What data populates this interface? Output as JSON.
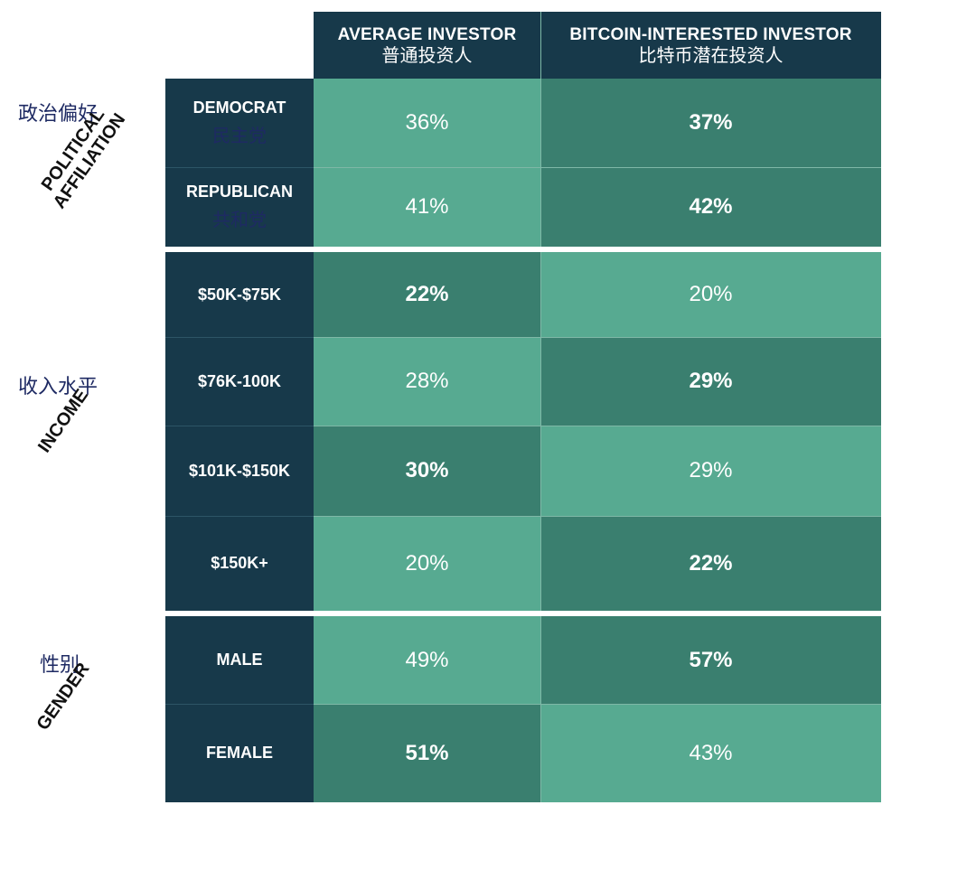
{
  "columns": [
    {
      "en": "AVERAGE INVESTOR",
      "zh": "普通投资人"
    },
    {
      "en": "BITCOIN-INTERESTED INVESTOR",
      "zh": "比特币潜在投资人"
    }
  ],
  "groups": [
    {
      "en_lines": [
        "POLITICAL",
        "AFFILIATION"
      ],
      "zh": "政治偏好"
    },
    {
      "en_lines": [
        "INCOME"
      ],
      "zh": "收入水平"
    },
    {
      "en_lines": [
        "GENDER"
      ],
      "zh": "性别"
    }
  ],
  "rows": [
    {
      "en": "DEMOCRAT",
      "zh": "民主党",
      "values": [
        "36%",
        "37%"
      ]
    },
    {
      "en": "REPUBLICAN",
      "zh": "共和党",
      "values": [
        "41%",
        "42%"
      ]
    },
    {
      "en": "$50K-$75K",
      "zh": "",
      "values": [
        "22%",
        "20%"
      ]
    },
    {
      "en": "$76K-100K",
      "zh": "",
      "values": [
        "28%",
        "29%"
      ]
    },
    {
      "en": "$101K-$150K",
      "zh": "",
      "values": [
        "30%",
        "29%"
      ]
    },
    {
      "en": "$150K+",
      "zh": "",
      "values": [
        "20%",
        "22%"
      ]
    },
    {
      "en": "MALE",
      "zh": "",
      "values": [
        "49%",
        "57%"
      ]
    },
    {
      "en": "FEMALE",
      "zh": "",
      "values": [
        "51%",
        "43%"
      ]
    }
  ],
  "chart_data": {
    "type": "table",
    "columns": [
      "AVERAGE INVESTOR",
      "BITCOIN-INTERESTED INVESTOR"
    ],
    "categories": [
      "DEMOCRAT",
      "REPUBLICAN",
      "$50K-$75K",
      "$76K-100K",
      "$101K-$150K",
      "$150K+",
      "MALE",
      "FEMALE"
    ],
    "series": [
      {
        "name": "AVERAGE INVESTOR",
        "values": [
          36,
          41,
          22,
          28,
          30,
          20,
          49,
          51
        ]
      },
      {
        "name": "BITCOIN-INTERESTED INVESTOR",
        "values": [
          37,
          42,
          20,
          29,
          29,
          22,
          57,
          43
        ]
      }
    ],
    "row_groups": [
      {
        "name": "POLITICAL AFFILIATION",
        "rows": [
          "DEMOCRAT",
          "REPUBLICAN"
        ]
      },
      {
        "name": "INCOME",
        "rows": [
          "$50K-$75K",
          "$76K-100K",
          "$101K-$150K",
          "$150K+"
        ]
      },
      {
        "name": "GENDER",
        "rows": [
          "MALE",
          "FEMALE"
        ]
      }
    ],
    "colors": {
      "header": "#17394a",
      "light": "#57aa91",
      "dark": "#3a7f6f"
    }
  }
}
